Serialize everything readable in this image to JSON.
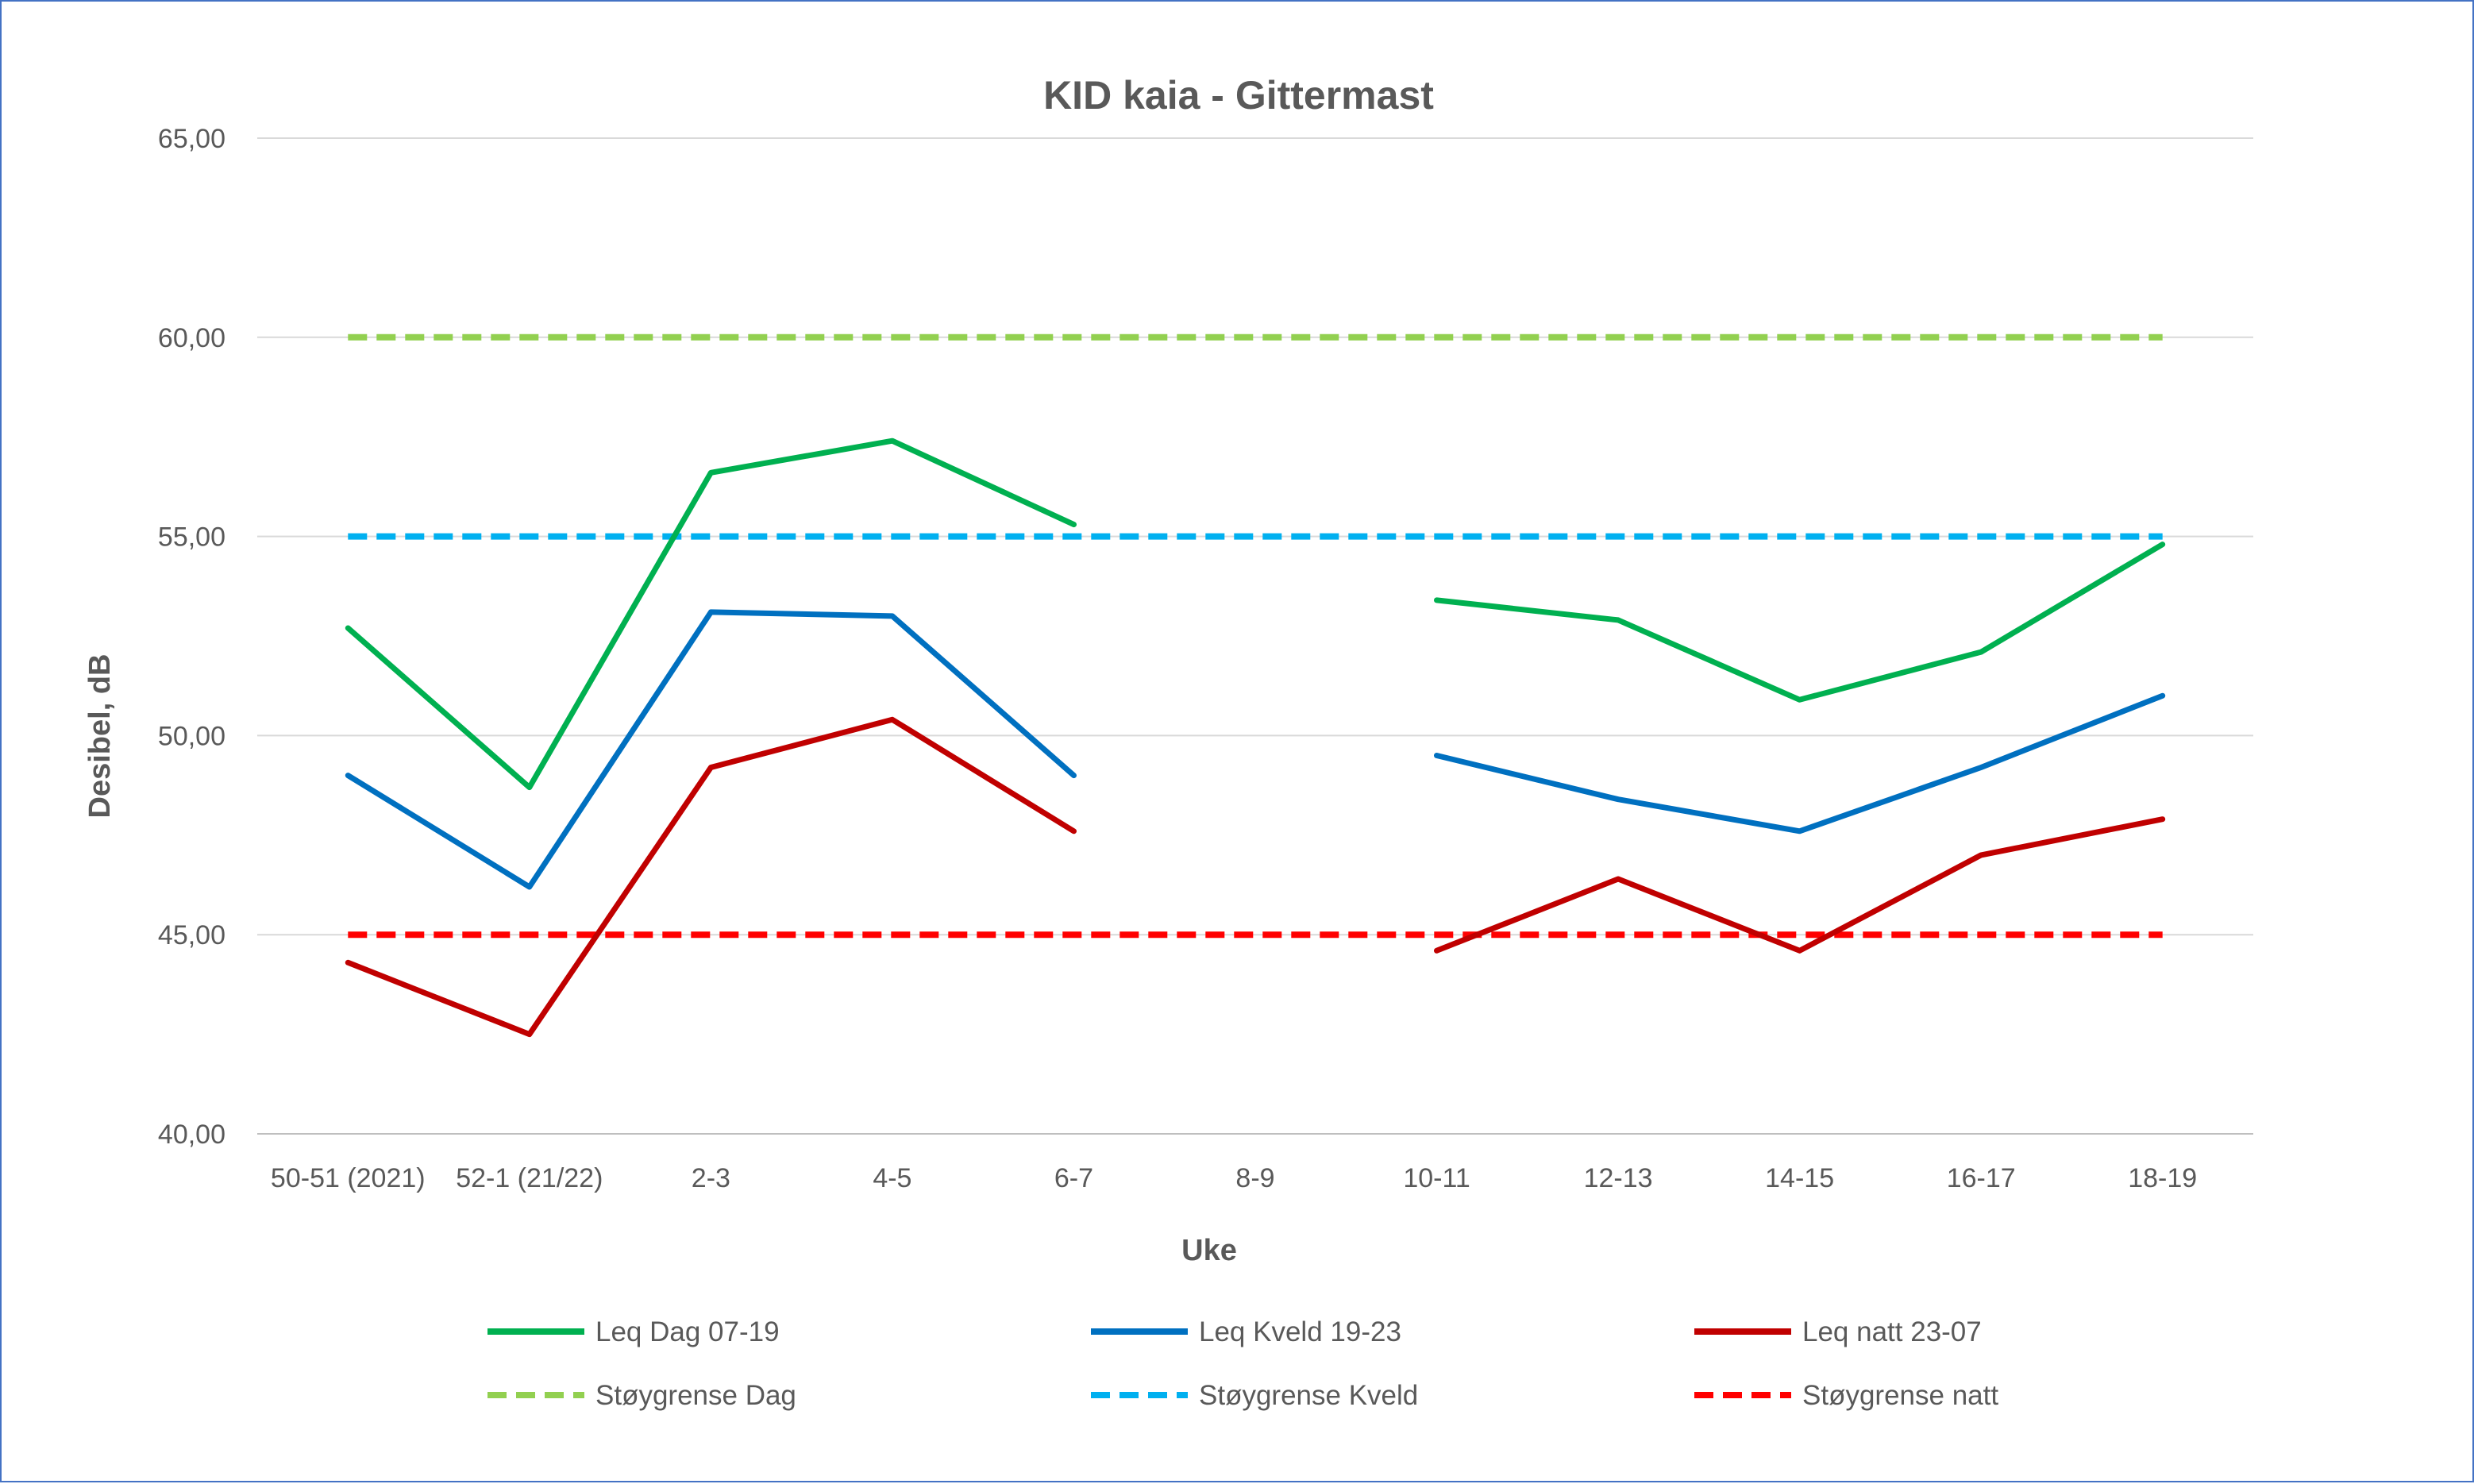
{
  "chart_data": {
    "type": "line",
    "title": "KID kaia - Gittermast",
    "xlabel": "Uke",
    "ylabel": "Desibel, dB",
    "ylim": [
      40,
      65
    ],
    "ytick_step": 5,
    "ytick_labels": [
      "40,00",
      "45,00",
      "50,00",
      "55,00",
      "60,00",
      "65,00"
    ],
    "grid": true,
    "legend_position": "bottom",
    "categories": [
      "50-51 (2021)",
      "52-1 (21/22)",
      "2-3",
      "4-5",
      "6-7",
      "8-9",
      "10-11",
      "12-13",
      "14-15",
      "16-17",
      "18-19"
    ],
    "series": [
      {
        "name": "Leq Dag 07-19",
        "color": "#00b050",
        "dashed": false,
        "values": [
          52.7,
          48.7,
          56.6,
          57.4,
          55.3,
          null,
          53.4,
          52.9,
          50.9,
          52.1,
          54.8
        ]
      },
      {
        "name": "Leq Kveld 19-23",
        "color": "#0070c0",
        "dashed": false,
        "values": [
          49.0,
          46.2,
          53.1,
          53.0,
          49.0,
          null,
          49.5,
          48.4,
          47.6,
          49.2,
          51.0
        ]
      },
      {
        "name": "Leq natt 23-07",
        "color": "#c00000",
        "dashed": false,
        "values": [
          44.3,
          42.5,
          49.2,
          50.4,
          47.6,
          null,
          44.6,
          46.4,
          44.6,
          47.0,
          47.9
        ]
      },
      {
        "name": "Støygrense Dag",
        "color": "#92d050",
        "dashed": true,
        "values": [
          60,
          60,
          60,
          60,
          60,
          60,
          60,
          60,
          60,
          60,
          60
        ]
      },
      {
        "name": "Støygrense Kveld",
        "color": "#00b0f0",
        "dashed": true,
        "values": [
          55,
          55,
          55,
          55,
          55,
          55,
          55,
          55,
          55,
          55,
          55
        ]
      },
      {
        "name": "Støygrense natt",
        "color": "#ff0000",
        "dashed": true,
        "values": [
          45,
          45,
          45,
          45,
          45,
          45,
          45,
          45,
          45,
          45,
          45
        ]
      }
    ]
  }
}
